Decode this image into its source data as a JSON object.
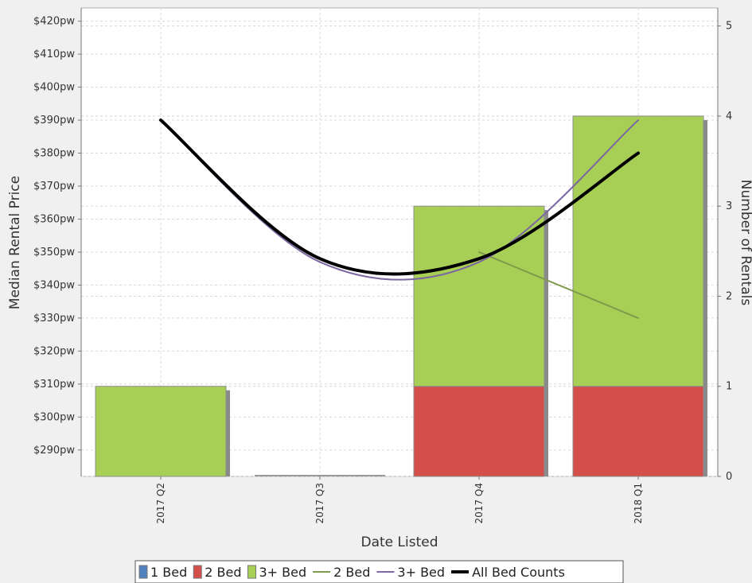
{
  "chart_data": {
    "type": "bar",
    "xlabel": "Date Listed",
    "ylabel_left": "Median Rental Price",
    "ylabel_right": "Number of Rentals",
    "categories": [
      "2017 Q2",
      "2017 Q3",
      "2017 Q4",
      "2018 Q1"
    ],
    "left_axis": {
      "ylim": [
        282,
        424
      ],
      "ticks": [
        290,
        300,
        310,
        320,
        330,
        340,
        350,
        360,
        370,
        380,
        390,
        400,
        410,
        420
      ],
      "tick_labels": [
        "$290pw",
        "$300pw",
        "$310pw",
        "$320pw",
        "$330pw",
        "$340pw",
        "$350pw",
        "$360pw",
        "$370pw",
        "$380pw",
        "$390pw",
        "$400pw",
        "$410pw",
        "$420pw"
      ]
    },
    "right_axis": {
      "ylim": [
        0,
        5.2
      ],
      "ticks": [
        0,
        1,
        2,
        3,
        4,
        5
      ],
      "tick_labels": [
        "0",
        "1",
        "2",
        "3",
        "4",
        "5"
      ]
    },
    "bar_series": [
      {
        "name": "1 Bed",
        "color": "#4f81bd",
        "values": [
          0,
          0,
          0,
          0
        ]
      },
      {
        "name": "2 Bed",
        "color": "#d44f4a",
        "values": [
          0,
          0,
          1,
          1
        ]
      },
      {
        "name": "3+ Bed",
        "color": "#a8cf55",
        "values": [
          1,
          0,
          2,
          3
        ]
      }
    ],
    "line_series": [
      {
        "name": "2 Bed",
        "color": "#7f9a4c",
        "width": 2,
        "smooth": false,
        "values": [
          null,
          null,
          350,
          330
        ]
      },
      {
        "name": "3+ Bed",
        "color": "#7b68a0",
        "width": 2,
        "smooth": true,
        "values": [
          390,
          347,
          347,
          390
        ]
      },
      {
        "name": "All Bed Counts",
        "color": "#000000",
        "width": 4,
        "smooth": true,
        "values": [
          390,
          348,
          348,
          380
        ]
      }
    ],
    "legend": {
      "position": "bottom",
      "items": [
        {
          "label": "1 Bed",
          "kind": "box",
          "color": "#4f81bd"
        },
        {
          "label": "2 Bed",
          "kind": "box",
          "color": "#d44f4a"
        },
        {
          "label": "3+ Bed",
          "kind": "box",
          "color": "#a8cf55"
        },
        {
          "label": "2 Bed",
          "kind": "line",
          "color": "#7f9a4c"
        },
        {
          "label": "3+ Bed",
          "kind": "line",
          "color": "#7b68a0"
        },
        {
          "label": "All Bed Counts",
          "kind": "line",
          "color": "#000000"
        }
      ]
    },
    "grid": true
  }
}
